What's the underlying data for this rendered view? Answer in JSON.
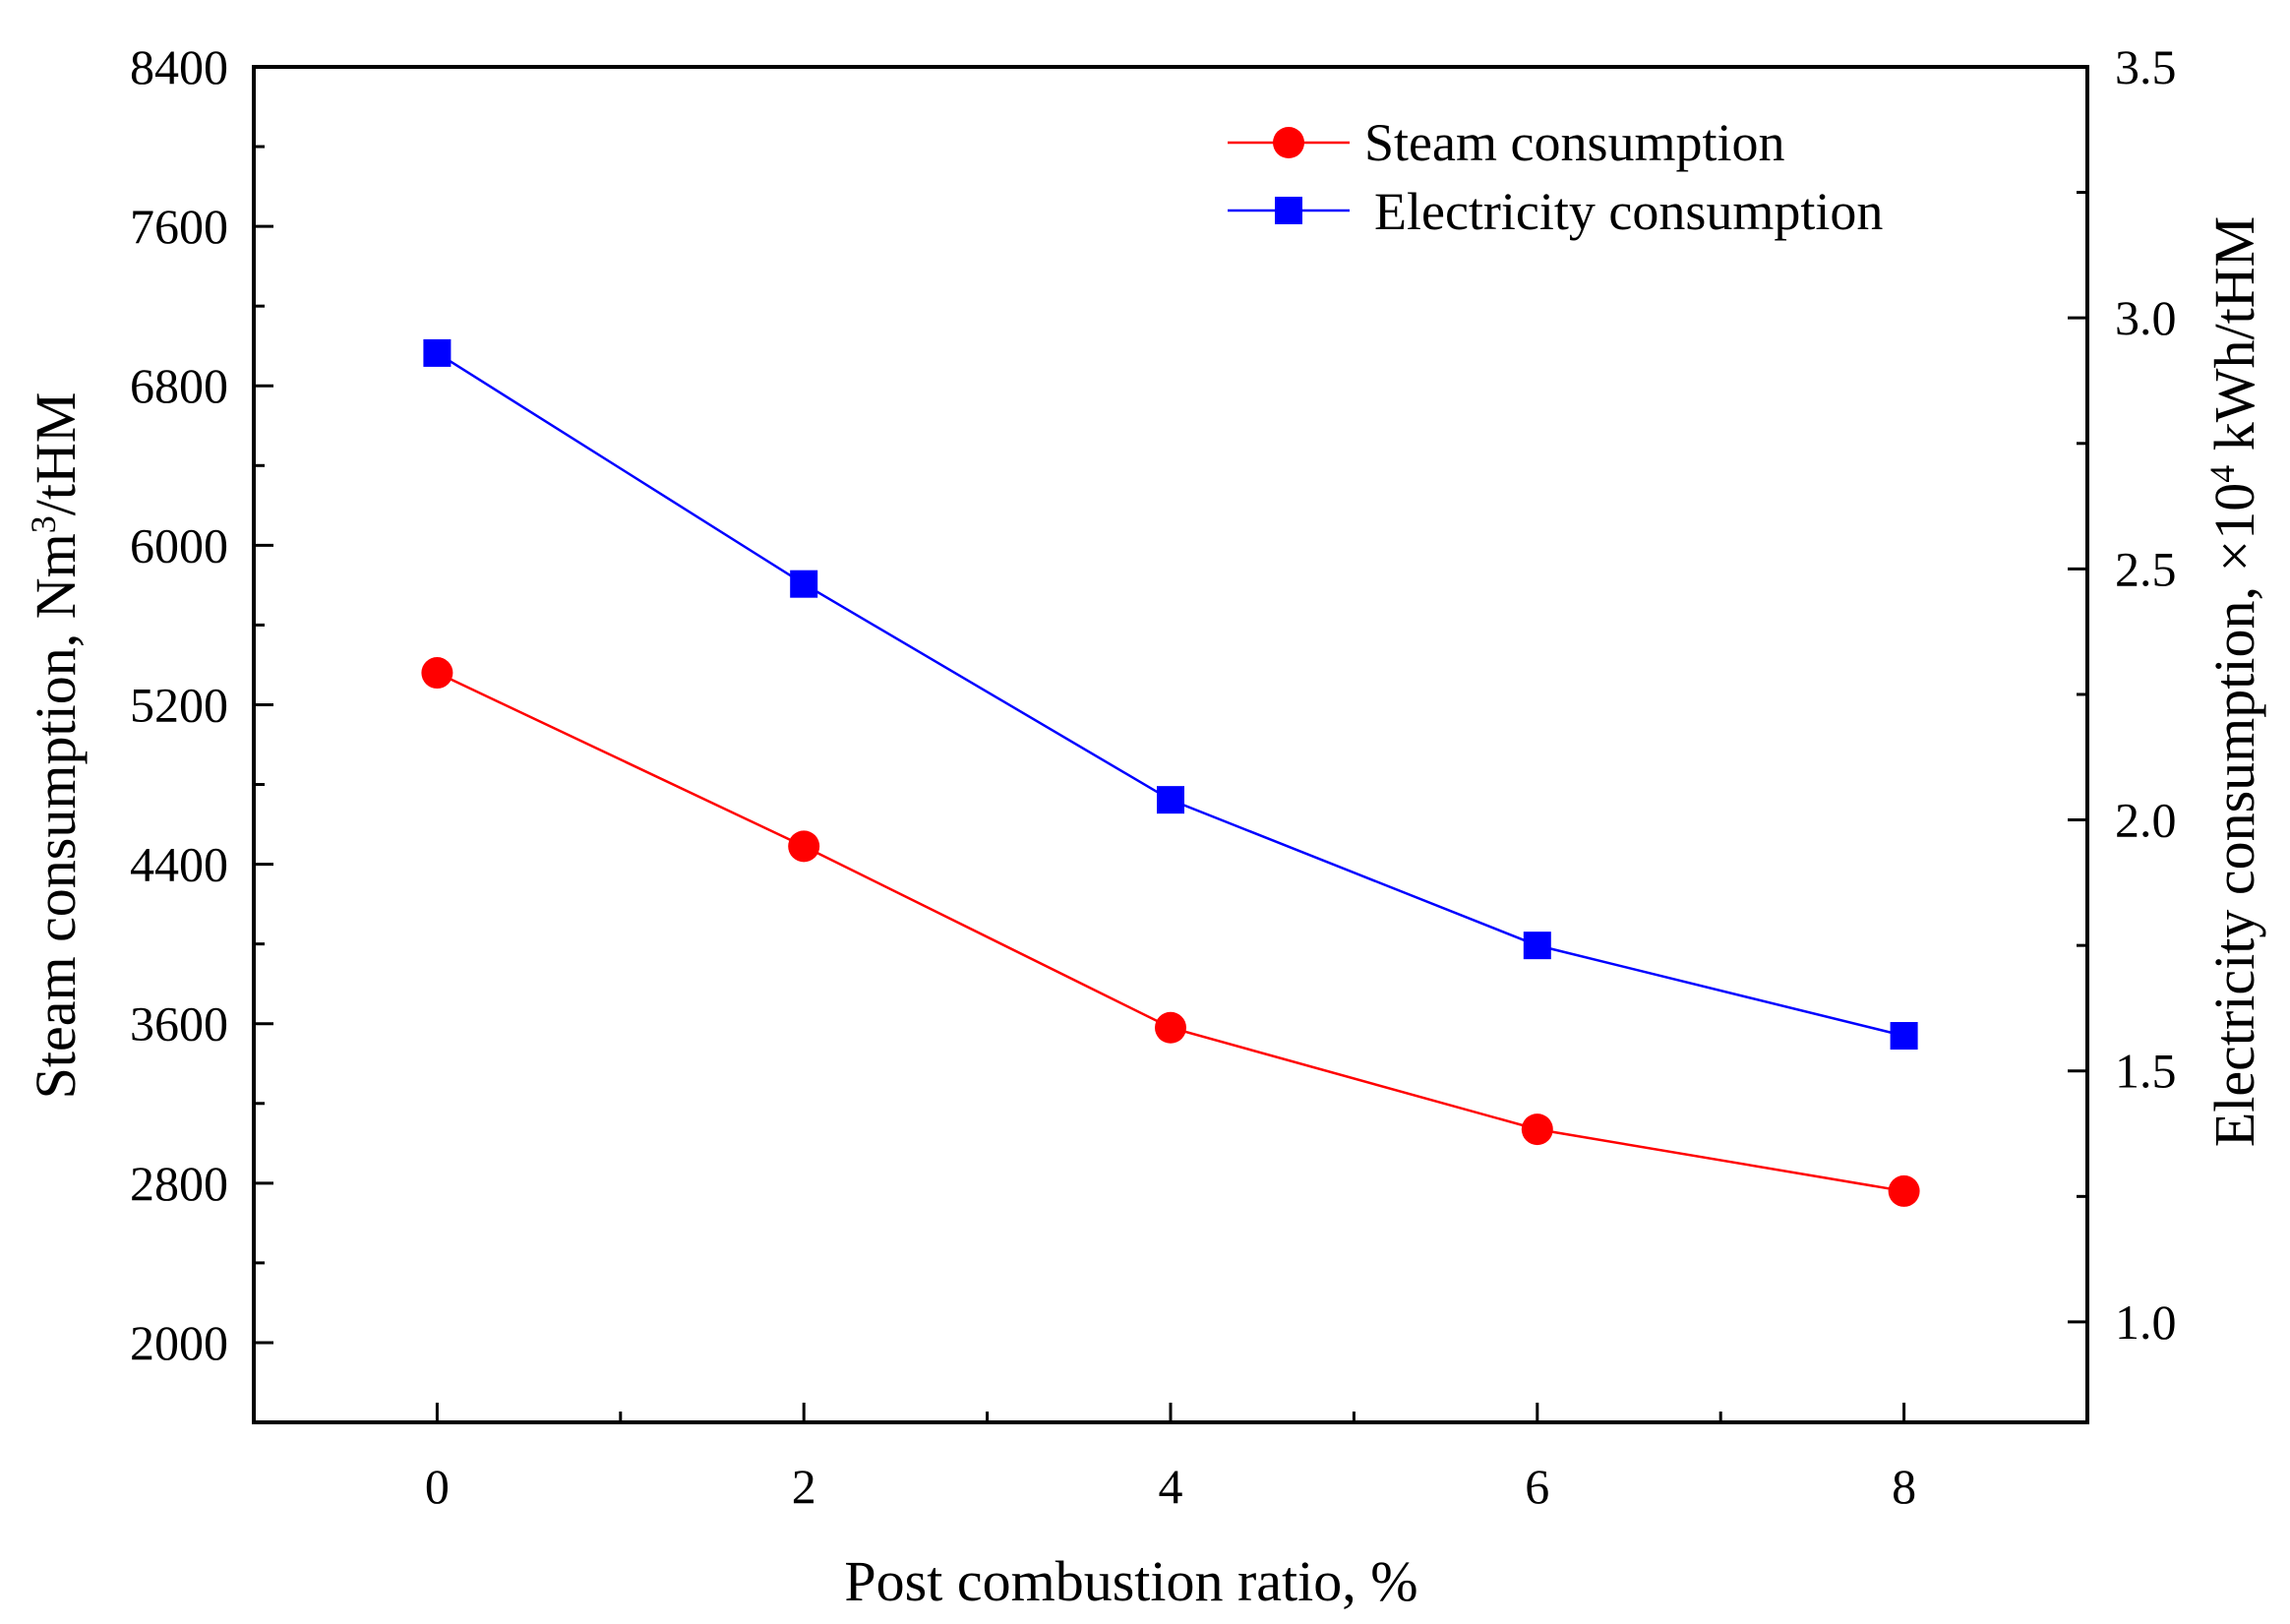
{
  "chart_data": {
    "type": "line",
    "title": "",
    "xlabel": "Post combustion ratio, %",
    "ylabel": {
      "prefix": "Steam consumption, Nm",
      "superscript": "3",
      "suffix": "/tHM"
    },
    "y2label": {
      "prefix": "Electricity consumption, ×10",
      "superscript": "4",
      "suffix": " kWh/tHM"
    },
    "x": [
      0,
      2,
      4,
      6,
      8
    ],
    "xlim": [
      -1,
      9
    ],
    "xticks": [
      0,
      2,
      4,
      6,
      8
    ],
    "xticklabels": [
      "0",
      "2",
      "4",
      "6",
      "8"
    ],
    "xminor": [
      1,
      3,
      5,
      7
    ],
    "ylim": [
      1600,
      8400
    ],
    "yticks": [
      2000,
      2800,
      3600,
      4400,
      5200,
      6000,
      6800,
      7600,
      8400
    ],
    "yticklabels": [
      "2000",
      "2800",
      "3600",
      "4400",
      "5200",
      "6000",
      "6800",
      "7600",
      "8400"
    ],
    "yminor": [
      2400,
      3200,
      4000,
      4800,
      5600,
      6400,
      7200,
      8000
    ],
    "y2lim": [
      0.8,
      3.5
    ],
    "y2ticks": [
      1.0,
      1.5,
      2.0,
      2.5,
      3.0,
      3.5
    ],
    "y2ticklabels": [
      "1.0",
      "1.5",
      "2.0",
      "2.5",
      "3.0",
      "3.5"
    ],
    "y2minor": [
      1.25,
      1.75,
      2.25,
      2.75,
      3.25
    ],
    "series": [
      {
        "name": "Steam consumption",
        "axis": "left",
        "color": "#ff0000",
        "marker": "circle",
        "values": [
          5360,
          4490,
          3580,
          3070,
          2760
        ]
      },
      {
        "name": "Electricity consumption",
        "axis": "right",
        "color": "#0000ff",
        "marker": "square",
        "values": [
          2.93,
          2.47,
          2.04,
          1.75,
          1.57
        ]
      }
    ],
    "legend_position": "top-right",
    "grid": false
  }
}
